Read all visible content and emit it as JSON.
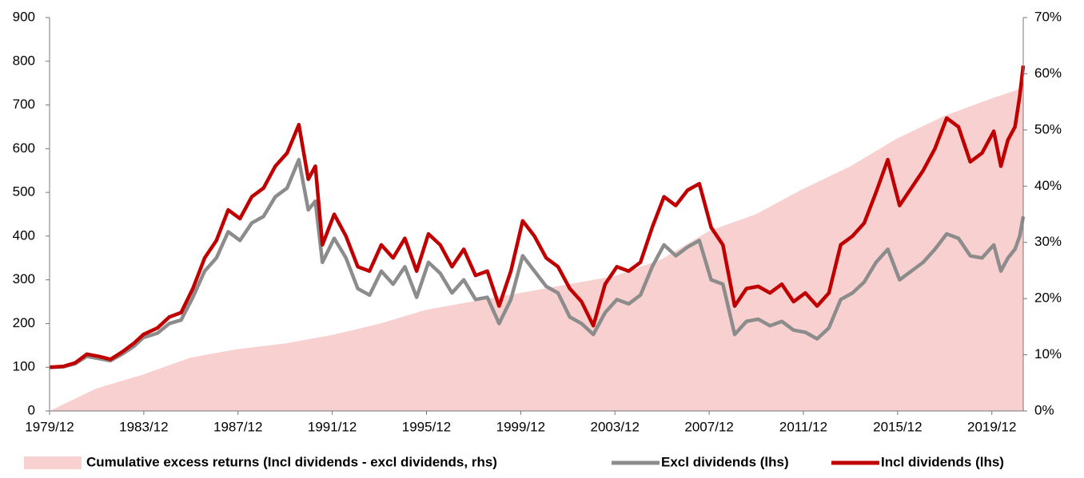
{
  "chart_data": {
    "type": "line",
    "x": [
      1979.917,
      1980.5,
      1981,
      1981.5,
      1982,
      1982.5,
      1983,
      1983.5,
      1983.9,
      1984.5,
      1985,
      1985.5,
      1986,
      1986.5,
      1987,
      1987.5,
      1988,
      1988.5,
      1989,
      1989.5,
      1990,
      1990.5,
      1990.9,
      1991.2,
      1991.5,
      1992,
      1992.5,
      1993,
      1993.5,
      1994,
      1994.5,
      1995,
      1995.5,
      1996,
      1996.5,
      1997,
      1997.5,
      1998,
      1998.5,
      1999,
      1999.5,
      2000,
      2000.5,
      2001,
      2001.5,
      2002,
      2002.5,
      2003,
      2003.5,
      2004,
      2004.5,
      2005,
      2005.5,
      2006,
      2006.5,
      2007,
      2007.5,
      2008,
      2008.5,
      2009,
      2009.5,
      2010,
      2010.5,
      2011,
      2011.5,
      2012,
      2012.5,
      2013,
      2013.5,
      2014,
      2014.5,
      2015,
      2015.5,
      2016,
      2016.5,
      2017,
      2017.5,
      2018,
      2018.5,
      2019,
      2019.5,
      2020,
      2020.3,
      2020.6,
      2020.9,
      2021.1,
      2021.25
    ],
    "series": [
      {
        "name": "Cumulative excess returns (Incl dividends - excl dividends, rhs)",
        "color": "#f8d0d0",
        "axis": "y2",
        "kind": "area",
        "x": [
          1979.917,
          1981.9,
          1983.9,
          1985.9,
          1987.9,
          1989.9,
          1991.9,
          1993.9,
          1995.9,
          1997.9,
          1999.9,
          2001.9,
          2003.9,
          2005.9,
          2007.9,
          2009.9,
          2011.9,
          2013.9,
          2015.9,
          2017.9,
          2019.9,
          2021.25
        ],
        "values": [
          0,
          4,
          6.5,
          9.5,
          11,
          12,
          13.5,
          15.5,
          18,
          19.5,
          21,
          22.5,
          24,
          27,
          32,
          35,
          39.5,
          43.5,
          48.5,
          52.5,
          55.6,
          57.5
        ]
      },
      {
        "name": "Excl dividends (lhs)",
        "color": "#8c8c8c",
        "values": [
          100,
          101,
          108,
          125,
          120,
          115,
          130,
          148,
          168,
          178,
          200,
          208,
          260,
          320,
          350,
          410,
          390,
          430,
          445,
          490,
          510,
          575,
          460,
          480,
          340,
          395,
          350,
          280,
          265,
          320,
          290,
          330,
          260,
          340,
          315,
          270,
          300,
          255,
          260,
          200,
          255,
          355,
          320,
          285,
          270,
          215,
          200,
          175,
          225,
          255,
          245,
          265,
          330,
          380,
          355,
          375,
          390,
          300,
          290,
          175,
          205,
          210,
          195,
          205,
          185,
          180,
          165,
          190,
          255,
          270,
          295,
          340,
          370,
          300,
          320,
          340,
          370,
          405,
          395,
          355,
          350,
          380,
          320,
          350,
          370,
          400,
          445
        ]
      },
      {
        "name": "Incl dividends (lhs)",
        "color": "#c00000",
        "values": [
          100,
          102,
          110,
          130,
          125,
          118,
          135,
          155,
          175,
          190,
          215,
          225,
          280,
          350,
          390,
          460,
          440,
          490,
          510,
          560,
          590,
          655,
          530,
          560,
          380,
          450,
          400,
          330,
          320,
          380,
          350,
          395,
          320,
          405,
          380,
          330,
          370,
          310,
          320,
          240,
          320,
          435,
          400,
          350,
          330,
          280,
          250,
          195,
          290,
          330,
          320,
          340,
          420,
          490,
          470,
          505,
          520,
          420,
          380,
          240,
          280,
          285,
          270,
          290,
          250,
          270,
          240,
          270,
          380,
          400,
          430,
          500,
          575,
          470,
          510,
          550,
          600,
          670,
          650,
          570,
          590,
          640,
          560,
          620,
          650,
          720,
          790
        ]
      }
    ],
    "xlim": [
      1979.917,
      2021.25
    ],
    "xticks": [
      {
        "value": 1979.917,
        "label": "1979/12"
      },
      {
        "value": 1983.917,
        "label": "1983/12"
      },
      {
        "value": 1987.917,
        "label": "1987/12"
      },
      {
        "value": 1991.917,
        "label": "1991/12"
      },
      {
        "value": 1995.917,
        "label": "1995/12"
      },
      {
        "value": 1999.917,
        "label": "1999/12"
      },
      {
        "value": 2003.917,
        "label": "2003/12"
      },
      {
        "value": 2007.917,
        "label": "2007/12"
      },
      {
        "value": 2011.917,
        "label": "2011/12"
      },
      {
        "value": 2015.917,
        "label": "2015/12"
      },
      {
        "value": 2019.917,
        "label": "2019/12"
      }
    ],
    "ylim": [
      0,
      900
    ],
    "yticks": [
      0,
      100,
      200,
      300,
      400,
      500,
      600,
      700,
      800,
      900
    ],
    "y2lim": [
      0,
      70
    ],
    "y2ticks": [
      {
        "value": 0,
        "label": "0%"
      },
      {
        "value": 10,
        "label": "10%"
      },
      {
        "value": 20,
        "label": "20%"
      },
      {
        "value": 30,
        "label": "30%"
      },
      {
        "value": 40,
        "label": "40%"
      },
      {
        "value": 50,
        "label": "50%"
      },
      {
        "value": 60,
        "label": "60%"
      },
      {
        "value": 70,
        "label": "70%"
      }
    ],
    "legend": "bottom"
  }
}
